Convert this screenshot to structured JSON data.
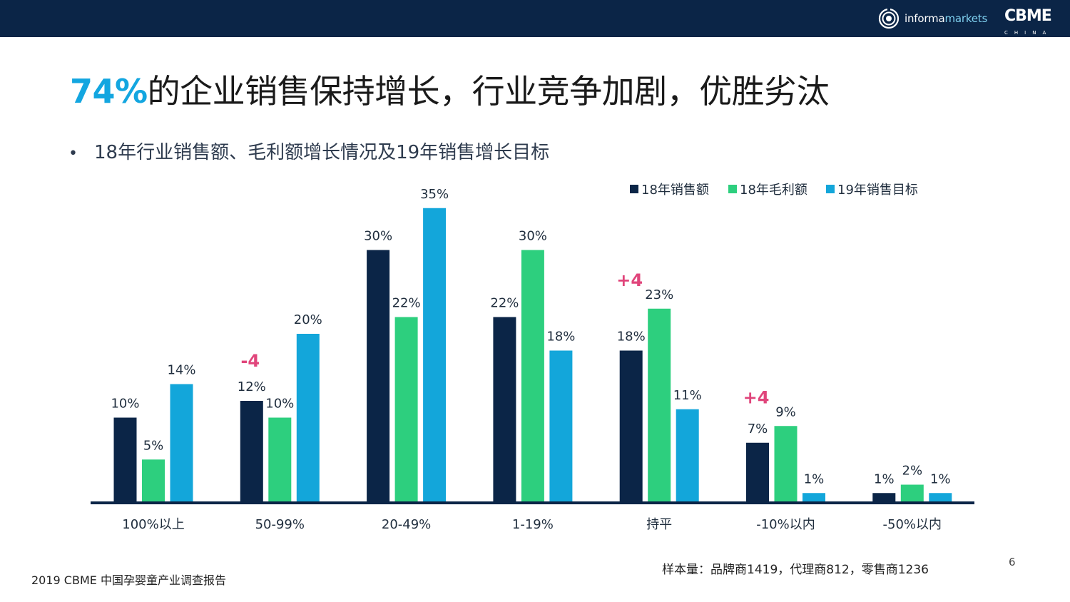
{
  "brand": {
    "informa_part1": "informa",
    "informa_part2": "markets",
    "cbme_word": "CBME",
    "cbme_sub": "CHINA"
  },
  "title": {
    "highlight": "74%",
    "rest": "的企业销售保持增长，行业竞争加剧，优胜劣汰"
  },
  "subtitle": {
    "bullet": "•",
    "text": "18年行业销售额、毛利额增长情况及19年销售增长目标"
  },
  "colors": {
    "sales_18": "#0b2547",
    "profit_18": "#2dcf7e",
    "target_19": "#13a6da",
    "axis": "#0b2547",
    "annotation": "#e0457b",
    "title_highlight": "#13a6e0"
  },
  "chart_data": {
    "type": "bar",
    "title": "",
    "xlabel": "",
    "ylabel": "",
    "ylim": [
      0,
      35
    ],
    "grid": false,
    "legend_position": "top-right",
    "categories": [
      "100%以上",
      "50-99%",
      "20-49%",
      "1-19%",
      "持平",
      "-10%以内",
      "-50%以内"
    ],
    "series": [
      {
        "name": "18年销售额",
        "values": [
          10,
          12,
          30,
          22,
          18,
          7,
          1
        ],
        "color": "#0b2547"
      },
      {
        "name": "18年毛利额",
        "values": [
          5,
          10,
          22,
          30,
          23,
          9,
          2
        ],
        "color": "#2dcf7e"
      },
      {
        "name": "19年销售目标",
        "values": [
          14,
          20,
          35,
          18,
          11,
          1,
          1
        ],
        "color": "#13a6da"
      }
    ],
    "value_labels": [
      [
        "10%",
        "5%",
        "14%"
      ],
      [
        "12%",
        "10%",
        "20%"
      ],
      [
        "30%",
        "22%",
        "35%"
      ],
      [
        "22%",
        "30%",
        "18%"
      ],
      [
        "18%",
        "23%",
        "11%"
      ],
      [
        "7%",
        "9%",
        "1%"
      ],
      [
        "1%",
        "2%",
        "1%"
      ]
    ],
    "annotations": [
      {
        "category": "50-99%",
        "text": "-4"
      },
      {
        "category": "持平",
        "text": "+4"
      },
      {
        "category": "-10%以内",
        "text": "+4"
      }
    ]
  },
  "footnote": {
    "sample": "样本量：品牌商1419，代理商812，零售商1236",
    "page": "6",
    "report": "2019 CBME 中国孕婴童产业调查报告"
  }
}
